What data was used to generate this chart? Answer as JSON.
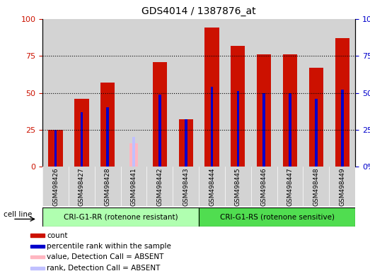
{
  "title": "GDS4014 / 1387876_at",
  "samples": [
    "GSM498426",
    "GSM498427",
    "GSM498428",
    "GSM498441",
    "GSM498442",
    "GSM498443",
    "GSM498444",
    "GSM498445",
    "GSM498446",
    "GSM498447",
    "GSM498448",
    "GSM498449"
  ],
  "count_values": [
    25,
    46,
    57,
    0,
    71,
    32,
    94,
    82,
    76,
    76,
    67,
    87
  ],
  "rank_values": [
    25,
    37,
    40,
    0,
    49,
    32,
    54,
    51,
    50,
    50,
    46,
    52
  ],
  "absent_count": [
    0,
    0,
    0,
    16,
    0,
    0,
    0,
    0,
    0,
    0,
    0,
    0
  ],
  "absent_rank": [
    0,
    0,
    0,
    20,
    0,
    0,
    0,
    0,
    0,
    0,
    0,
    0
  ],
  "group1_indices": [
    0,
    1,
    2,
    3,
    4,
    5
  ],
  "group2_indices": [
    6,
    7,
    8,
    9,
    10,
    11
  ],
  "group1_label": "CRI-G1-RR (rotenone resistant)",
  "group2_label": "CRI-G1-RS (rotenone sensitive)",
  "cell_line_label": "cell line",
  "ylim": [
    0,
    100
  ],
  "yticks": [
    0,
    25,
    50,
    75,
    100
  ],
  "bar_color_count": "#cc1100",
  "bar_color_rank": "#0000cc",
  "bar_color_absent_count": "#ffb6c1",
  "bar_color_absent_rank": "#c0c0ff",
  "group1_bg": "#b0ffb0",
  "group2_bg": "#50dd50",
  "bar_bg": "#d3d3d3",
  "fig_bg": "#ffffff",
  "legend_items": [
    {
      "color": "#cc1100",
      "label": "count"
    },
    {
      "color": "#0000cc",
      "label": "percentile rank within the sample"
    },
    {
      "color": "#ffb6c1",
      "label": "value, Detection Call = ABSENT"
    },
    {
      "color": "#c0c0ff",
      "label": "rank, Detection Call = ABSENT"
    }
  ]
}
